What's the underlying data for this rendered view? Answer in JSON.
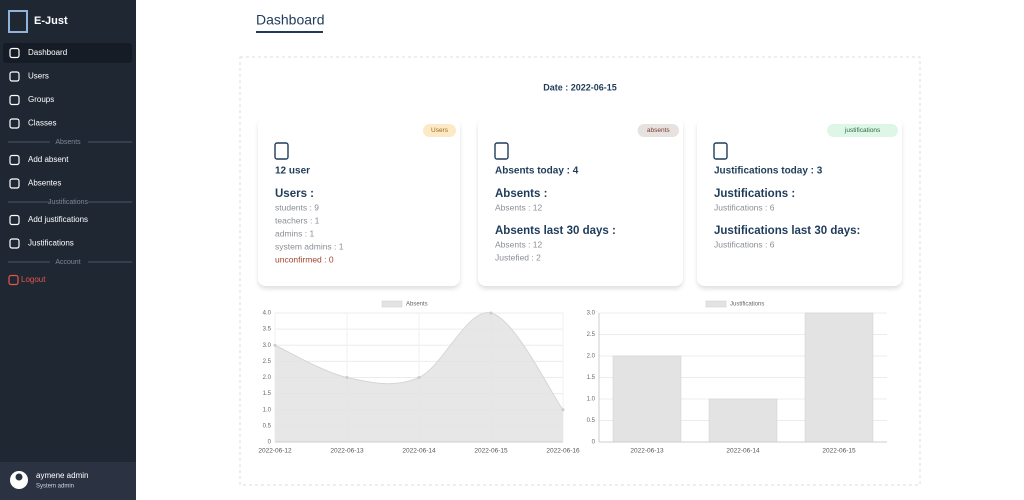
{
  "sidebar": {
    "brand": "E-Just",
    "groups": [
      {
        "items": [
          "Dashboard",
          "Users",
          "Groups",
          "Classes"
        ]
      },
      {
        "heading": "Absents",
        "items": [
          "Add absent",
          "Absentes"
        ]
      },
      {
        "heading": "Justifications",
        "items": [
          "Add justifications",
          "Justifications"
        ]
      },
      {
        "heading": "Account",
        "items": [
          "Logout"
        ]
      }
    ],
    "user": {
      "name": "aymene admin",
      "role": "System admin"
    }
  },
  "header": {
    "title": "Dashboard"
  },
  "date": "Date : 2022-06-15",
  "cards": [
    {
      "badge": "Users",
      "headline": "12 user",
      "sections": [
        {
          "title": "Users :",
          "lines": [
            "students : 9",
            "teachers : 1",
            "admins : 1",
            "system admins : 1",
            "unconfirmed : 0"
          ]
        }
      ]
    },
    {
      "badge": "absents",
      "headline": "Absents today : 4",
      "sections": [
        {
          "title": "Absents :",
          "lines": [
            "Absents : 12"
          ]
        },
        {
          "title": "Absents last 30 days :",
          "lines": [
            "Absents : 12",
            "Justefied : 2"
          ]
        }
      ]
    },
    {
      "badge": "justifications",
      "headline": "Justifications today : 3",
      "sections": [
        {
          "title": "Justifications :",
          "lines": [
            "Justifications : 6"
          ]
        },
        {
          "title": "Justifications last 30 days:",
          "lines": [
            "Justifications : 6"
          ]
        }
      ]
    }
  ],
  "chart_data": [
    {
      "type": "line",
      "categories": [
        "2022-06-12",
        "2022-06-13",
        "2022-06-14",
        "2022-06-15",
        "2022-06-16"
      ],
      "series": [
        {
          "name": "Absents",
          "color": "#e3e3e3",
          "values": [
            3,
            2,
            2,
            4,
            1
          ]
        }
      ],
      "ylim": [
        0,
        4
      ],
      "yticks": [
        0,
        0.5,
        {
          "value": 1,
          "label": "1.0"
        },
        1.5,
        {
          "value": 2,
          "label": "2.0"
        },
        2.5,
        {
          "value": 3,
          "label": "3.0"
        },
        3.5,
        {
          "value": 4,
          "label": "4.0"
        }
      ],
      "grid": true
    },
    {
      "type": "bar",
      "categories": [
        "2022-06-13",
        "2022-06-14",
        "2022-06-15"
      ],
      "series": [
        {
          "name": "Justifications",
          "color": "#e3e3e3",
          "values": [
            2,
            1,
            3
          ]
        }
      ],
      "ylim": [
        0,
        3
      ],
      "yticks": [
        0,
        0.5,
        {
          "value": 1,
          "label": "1.0"
        },
        1.5,
        {
          "value": 2,
          "label": "2.0"
        },
        2.5,
        {
          "value": 3,
          "label": "3.0"
        }
      ],
      "grid": true
    }
  ]
}
